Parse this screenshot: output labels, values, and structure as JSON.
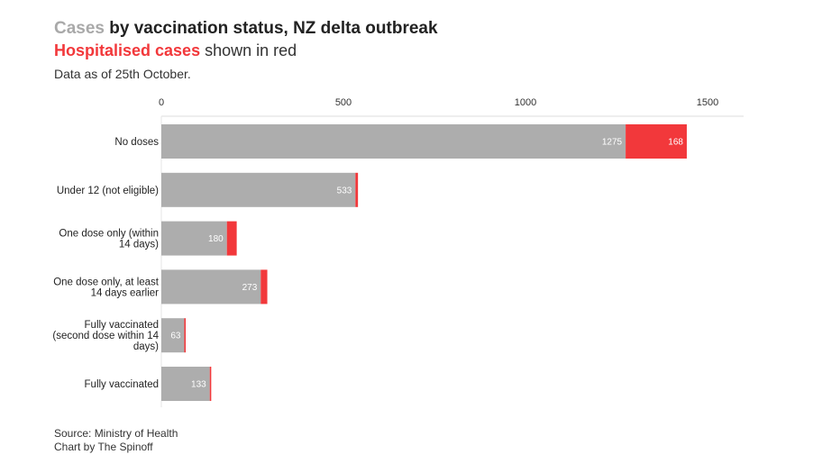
{
  "header": {
    "title_highlight": "Cases",
    "title_rest": " by vaccination status, NZ delta outbreak",
    "subtitle_highlight": "Hospitalised cases",
    "subtitle_rest": " shown in red",
    "note": "Data as of 25th October."
  },
  "footer": {
    "source": "Source: Ministry of Health",
    "credit": "Chart by The Spinoff"
  },
  "colors": {
    "cases": "#adadad",
    "hospitalised": "#f2383b",
    "title_grey": "#a9a9a9"
  },
  "chart_data": {
    "type": "bar",
    "orientation": "horizontal",
    "stacked": true,
    "categories": [
      [
        "No doses"
      ],
      [
        "Under 12 (not eligible)"
      ],
      [
        "One dose only (within",
        "14 days)"
      ],
      [
        "One dose only, at least",
        "14 days earlier"
      ],
      [
        "Fully vaccinated",
        "(second dose within 14",
        "days)"
      ],
      [
        "Fully vaccinated"
      ]
    ],
    "series": [
      {
        "name": "Cases",
        "values": [
          1275,
          533,
          180,
          273,
          63,
          133
        ],
        "labels": [
          "1275",
          "533",
          "180",
          "273",
          "63",
          "133"
        ]
      },
      {
        "name": "Hospitalised cases",
        "values": [
          168,
          7,
          27,
          18,
          4,
          4
        ],
        "labels": [
          "168",
          "",
          "",
          "",
          "",
          ""
        ]
      }
    ],
    "xticks": [
      0,
      500,
      1000,
      1500
    ],
    "xtick_labels": [
      "0",
      "500",
      "1000",
      "1500"
    ],
    "xlim": [
      0,
      1600
    ],
    "axis_position": "top",
    "grid": false,
    "legend": "none"
  }
}
